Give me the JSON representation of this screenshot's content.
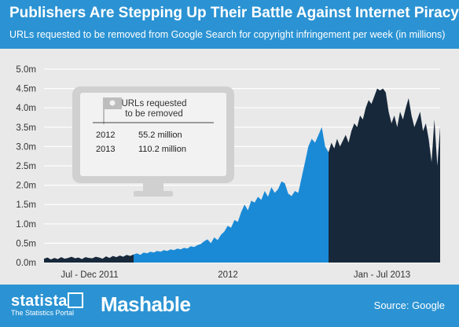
{
  "header": {
    "title": "Publishers Are Stepping Up Their Battle Against Internet Piracy",
    "subtitle": "URLs requested to be removed from Google Search for copyright infringement per week (in millions)"
  },
  "footer": {
    "brand": "statista",
    "brand_tagline": "The Statistics Portal",
    "partner": "Mashable",
    "source": "Source: Google"
  },
  "annotation": {
    "heading_line1": "URLs requested",
    "heading_line2": "to be removed",
    "rows": [
      {
        "year": "2012",
        "value": "55.2 million"
      },
      {
        "year": "2013",
        "value": "110.2 million"
      }
    ]
  },
  "colors": {
    "accent": "#2b93d3",
    "series_2011": "#17283b",
    "series_2012": "#1a8ad6",
    "series_2013": "#17283b",
    "plot_bg": "#e9e9e9"
  },
  "chart_data": {
    "type": "area",
    "ylim": [
      0,
      5
    ],
    "y_ticks": [
      "0.0m",
      "0.5m",
      "1.0m",
      "1.5m",
      "2.0m",
      "2.5m",
      "3.0m",
      "3.5m",
      "4.0m",
      "4.5m",
      "5.0m"
    ],
    "x_labels": [
      "Jul - Dec 2011",
      "2012",
      "Jan - Jul 2013"
    ],
    "grid": true,
    "series": [
      {
        "values": [
          0.1,
          0.13,
          0.08,
          0.12,
          0.09,
          0.14,
          0.1,
          0.12,
          0.15,
          0.11,
          0.13,
          0.09,
          0.14,
          0.12,
          0.11,
          0.15,
          0.13,
          0.1,
          0.16,
          0.12,
          0.17,
          0.14,
          0.18,
          0.15,
          0.2,
          0.17,
          0.21
        ]
      },
      {
        "values": [
          0.21,
          0.24,
          0.2,
          0.26,
          0.24,
          0.28,
          0.26,
          0.3,
          0.28,
          0.32,
          0.3,
          0.34,
          0.32,
          0.36,
          0.34,
          0.38,
          0.36,
          0.42,
          0.4,
          0.45,
          0.48,
          0.55,
          0.6,
          0.5,
          0.65,
          0.58,
          0.72,
          0.8,
          0.95,
          0.9,
          1.1,
          1.05,
          1.3,
          1.5,
          1.35,
          1.6,
          1.55,
          1.7,
          1.62,
          1.85,
          1.7,
          1.95,
          1.8,
          1.9,
          2.1,
          2.05,
          1.78,
          1.72,
          1.85,
          1.8,
          2.2,
          2.6,
          3.0,
          3.2,
          3.1,
          3.3,
          3.5,
          3.0,
          2.85
        ]
      },
      {
        "values": [
          2.85,
          3.1,
          2.95,
          3.2,
          3.0,
          3.15,
          3.3,
          3.1,
          3.4,
          3.6,
          3.5,
          3.8,
          3.7,
          4.0,
          4.2,
          4.1,
          4.3,
          4.5,
          4.45,
          4.5,
          4.4,
          3.9,
          3.6,
          3.8,
          3.5,
          3.9,
          3.7,
          4.0,
          4.25,
          3.8,
          3.5,
          3.7,
          3.9,
          3.4,
          3.6,
          3.2,
          2.6,
          3.7,
          2.5,
          3.5
        ]
      }
    ]
  }
}
